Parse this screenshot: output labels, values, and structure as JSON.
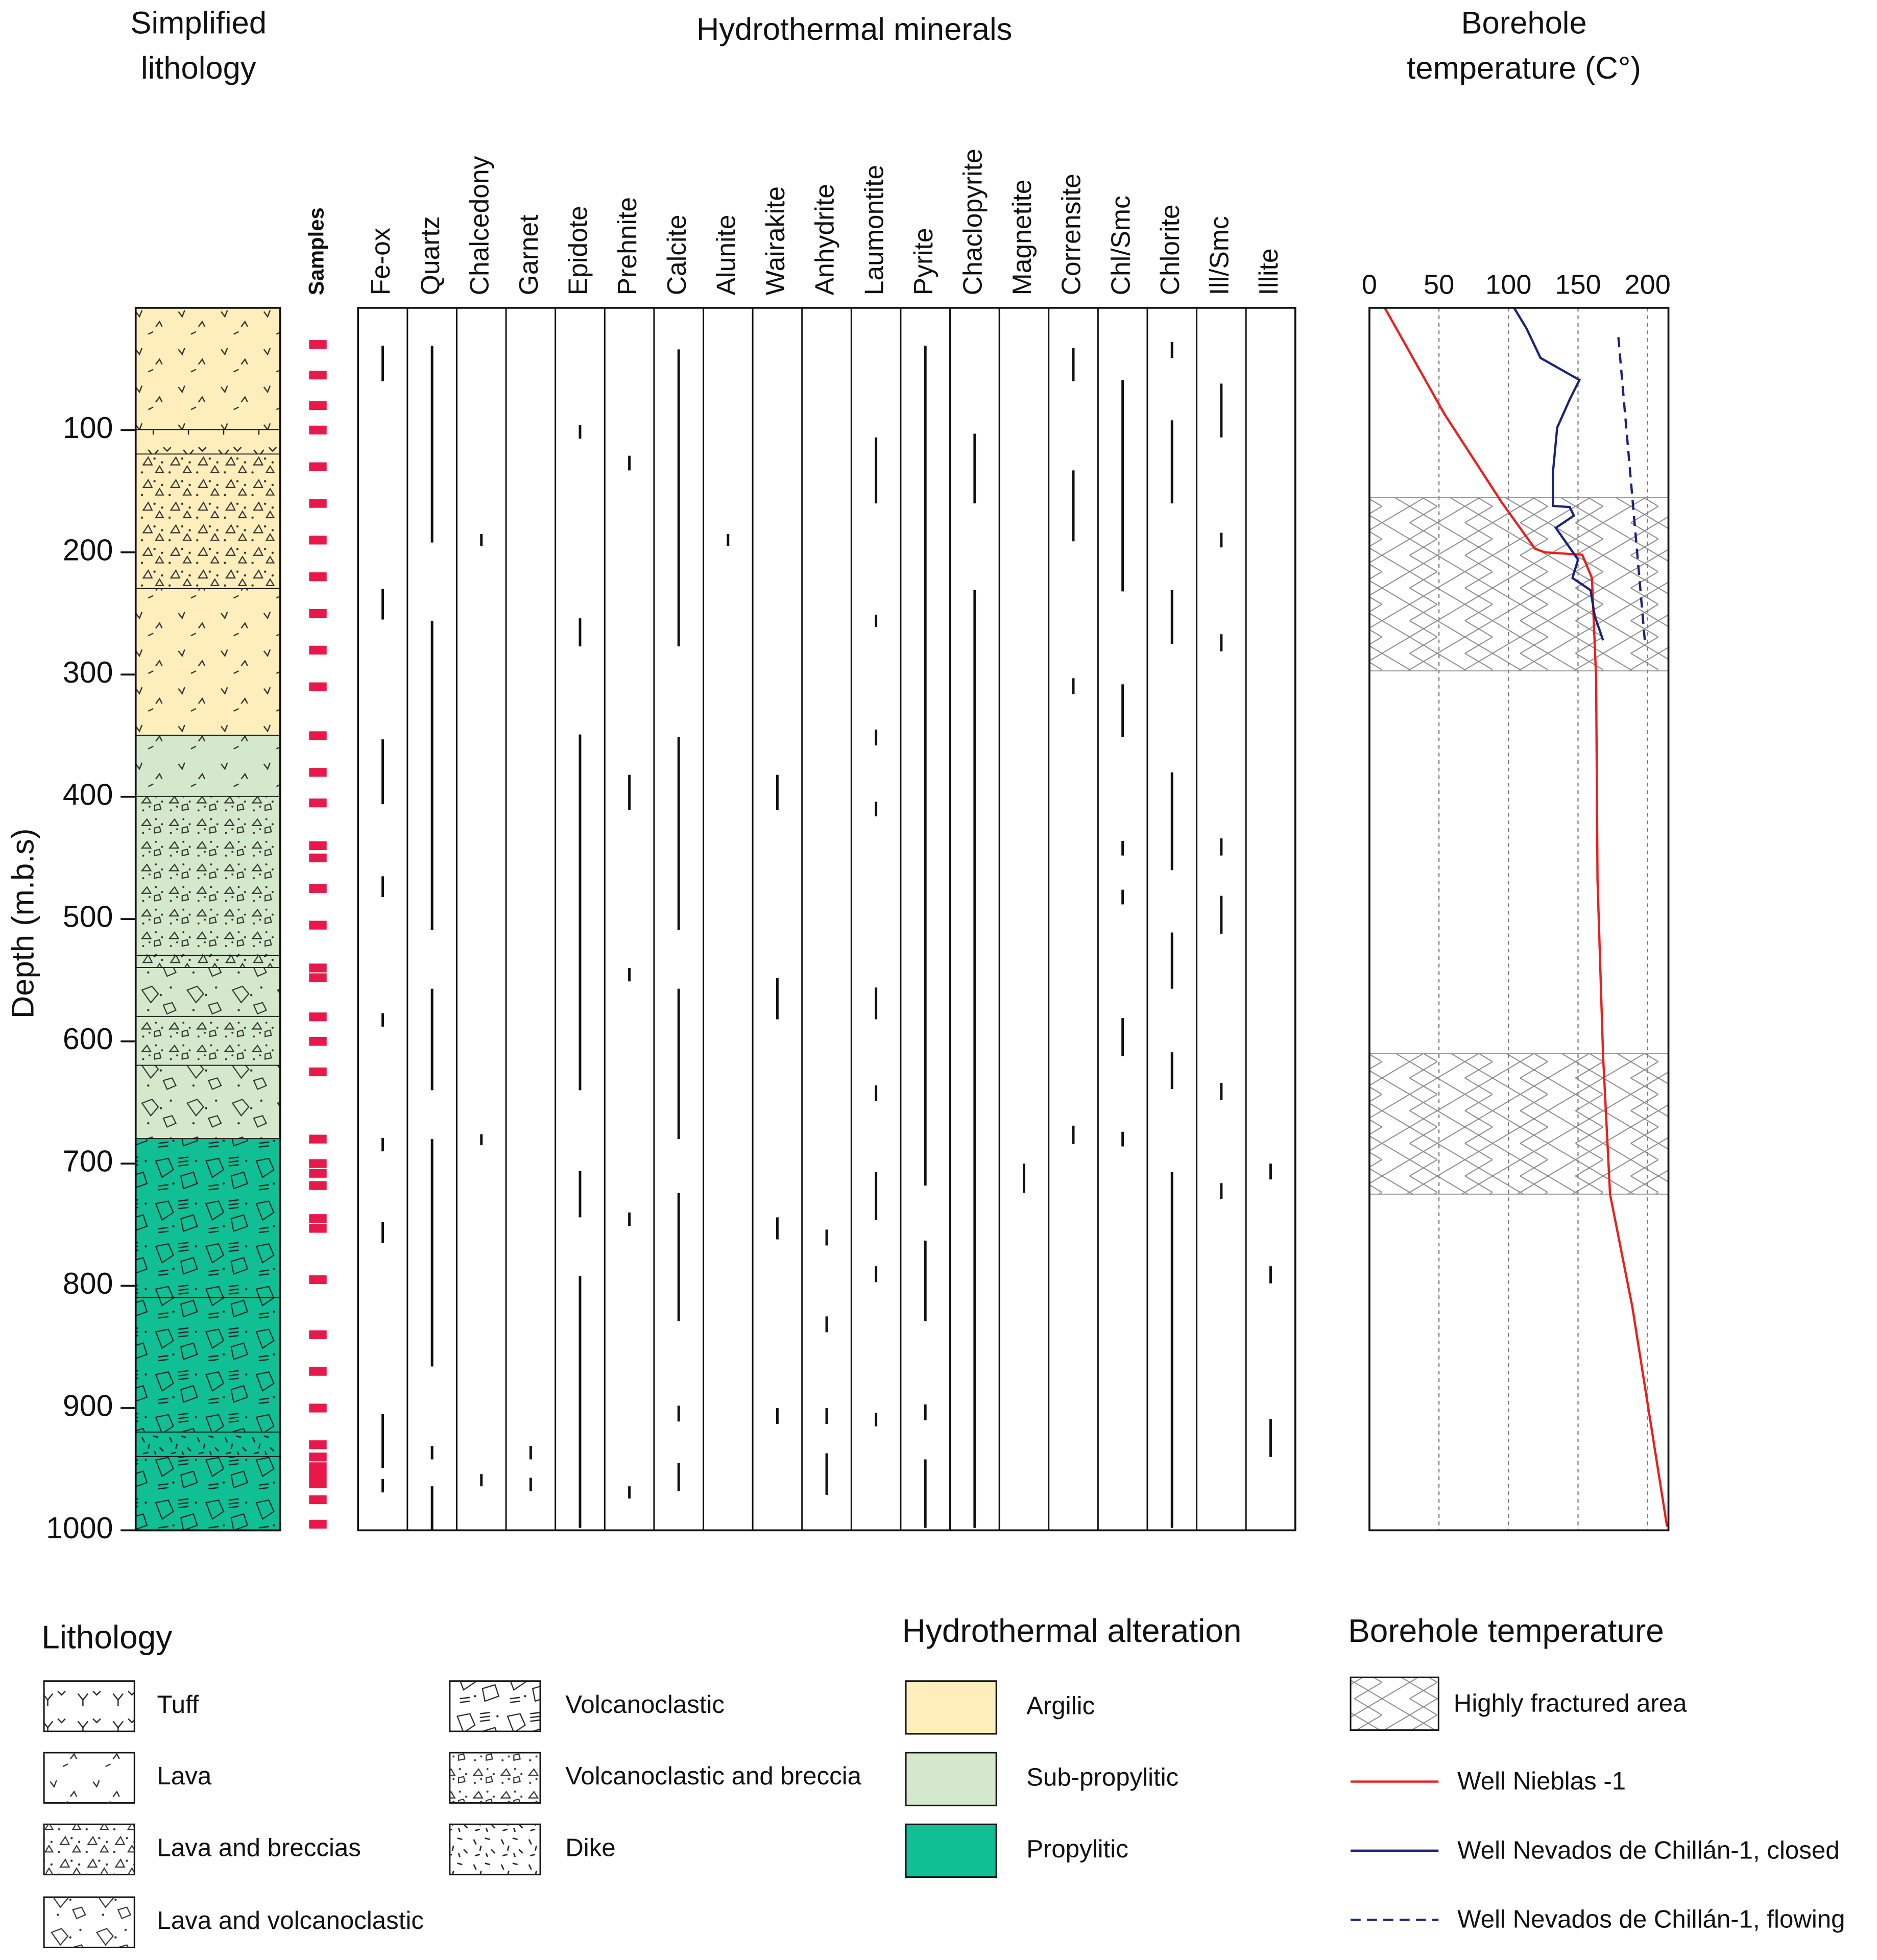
{
  "chart_data": [
    {
      "type": "strip",
      "title": [
        "Simplified",
        "lithology"
      ],
      "ylabel": "Depth (m.b.s)",
      "ylim": [
        0,
        1000
      ],
      "yticks": [
        100,
        200,
        300,
        400,
        500,
        600,
        700,
        800,
        900,
        1000
      ],
      "layers": [
        {
          "top": 0,
          "base": 100,
          "lithology": 1,
          "alteration": 0
        },
        {
          "top": 100,
          "base": 120,
          "lithology": 0,
          "alteration": 0
        },
        {
          "top": 120,
          "base": 230,
          "lithology": 2,
          "alteration": 0
        },
        {
          "top": 230,
          "base": 350,
          "lithology": 1,
          "alteration": 0
        },
        {
          "top": 350,
          "base": 400,
          "lithology": 1,
          "alteration": 1
        },
        {
          "top": 400,
          "base": 530,
          "lithology": 5,
          "alteration": 1
        },
        {
          "top": 530,
          "base": 540,
          "lithology": 2,
          "alteration": 1
        },
        {
          "top": 540,
          "base": 580,
          "lithology": 3,
          "alteration": 1
        },
        {
          "top": 580,
          "base": 620,
          "lithology": 5,
          "alteration": 1
        },
        {
          "top": 620,
          "base": 680,
          "lithology": 3,
          "alteration": 1
        },
        {
          "top": 680,
          "base": 810,
          "lithology": 4,
          "alteration": 2
        },
        {
          "top": 810,
          "base": 920,
          "lithology": 4,
          "alteration": 2
        },
        {
          "top": 920,
          "base": 940,
          "lithology": 6,
          "alteration": 2
        },
        {
          "top": 940,
          "base": 1000,
          "lithology": 4,
          "alteration": 2
        }
      ],
      "samples_label": "Samples",
      "samples_color": "#e8194a",
      "samples": [
        30,
        55,
        80,
        100,
        130,
        160,
        190,
        220,
        250,
        280,
        310,
        350,
        380,
        405,
        440,
        450,
        475,
        505,
        540,
        548,
        580,
        600,
        625,
        680,
        700,
        708,
        718,
        745,
        753,
        795,
        840,
        870,
        900,
        930,
        940,
        948,
        955,
        962,
        975,
        995
      ],
      "legend": {
        "title": "Lithology",
        "items": [
          "Tuff",
          "Lava",
          "Lava and breccias",
          "Lava and volcanoclastic",
          "Volcanoclastic",
          "Volcanoclastic and breccia",
          "Dike"
        ]
      },
      "alteration": {
        "title": "Hydrothermal alteration",
        "items": [
          {
            "name": "Argilic",
            "color": "#fdeebb"
          },
          {
            "name": "Sub-propylitic",
            "color": "#d4e9cb"
          },
          {
            "name": "Propylitic",
            "color": "#10bf94"
          }
        ]
      }
    },
    {
      "type": "range",
      "title": "Hydrothermal minerals",
      "ylim": [
        0,
        1000
      ],
      "categories": [
        "Fe-ox",
        "Quartz",
        "Chalcedony",
        "Garnet",
        "Epidote",
        "Prehnite",
        "Calcite",
        "Alunite",
        "Wairakite",
        "Anhydrite",
        "Laumontite",
        "Pyrite",
        "Chaclopyrite",
        "Magnetite",
        "Corrensite",
        "Chl/Smc",
        "Chlorite",
        "Ill/Smc",
        "Illite"
      ],
      "intervals": [
        [
          [
            31,
            60
          ],
          [
            230,
            255
          ],
          [
            353,
            406
          ],
          [
            465,
            482
          ],
          [
            577,
            588
          ],
          [
            679,
            690
          ],
          [
            748,
            765
          ],
          [
            905,
            949
          ],
          [
            958,
            969
          ]
        ],
        [
          [
            31,
            192
          ],
          [
            256,
            509
          ],
          [
            557,
            640
          ],
          [
            680,
            866
          ],
          [
            931,
            942
          ],
          [
            964,
            1000
          ]
        ],
        [
          [
            185,
            195
          ],
          [
            676,
            685
          ],
          [
            954,
            964
          ]
        ],
        [
          [
            931,
            942
          ],
          [
            957,
            968
          ]
        ],
        [
          [
            96,
            107
          ],
          [
            254,
            277
          ],
          [
            349,
            640
          ],
          [
            706,
            744
          ],
          [
            792,
            998
          ]
        ],
        [
          [
            121,
            133
          ],
          [
            382,
            411
          ],
          [
            540,
            551
          ],
          [
            740,
            751
          ],
          [
            964,
            974
          ]
        ],
        [
          [
            34,
            277
          ],
          [
            351,
            509
          ],
          [
            557,
            680
          ],
          [
            724,
            829
          ],
          [
            898,
            911
          ],
          [
            945,
            968
          ]
        ],
        [
          [
            185,
            195
          ]
        ],
        [
          [
            382,
            411
          ],
          [
            548,
            582
          ],
          [
            744,
            762
          ],
          [
            900,
            913
          ]
        ],
        [
          [
            754,
            767
          ],
          [
            825,
            838
          ],
          [
            900,
            913
          ],
          [
            937,
            971
          ]
        ],
        [
          [
            106,
            160
          ],
          [
            251,
            261
          ],
          [
            345,
            358
          ],
          [
            404,
            416
          ],
          [
            556,
            582
          ],
          [
            636,
            649
          ],
          [
            707,
            746
          ],
          [
            784,
            797
          ],
          [
            904,
            915
          ]
        ],
        [
          [
            31,
            718
          ],
          [
            763,
            829
          ],
          [
            897,
            910
          ],
          [
            942,
            998
          ]
        ],
        [
          [
            103,
            160
          ],
          [
            231,
            998
          ]
        ],
        [
          [
            700,
            724
          ]
        ],
        [
          [
            33,
            60
          ],
          [
            133,
            191
          ],
          [
            303,
            316
          ],
          [
            669,
            684
          ]
        ],
        [
          [
            59,
            232
          ],
          [
            308,
            351
          ],
          [
            436,
            448
          ],
          [
            476,
            488
          ],
          [
            581,
            612
          ],
          [
            674,
            686
          ]
        ],
        [
          [
            28,
            41
          ],
          [
            92,
            160
          ],
          [
            231,
            275
          ],
          [
            380,
            460
          ],
          [
            511,
            557
          ],
          [
            609,
            639
          ],
          [
            707,
            998
          ]
        ],
        [
          [
            62,
            106
          ],
          [
            184,
            196
          ],
          [
            267,
            281
          ],
          [
            434,
            448
          ],
          [
            481,
            512
          ],
          [
            634,
            648
          ],
          [
            716,
            729
          ]
        ],
        [
          [
            700,
            713
          ],
          [
            784,
            798
          ],
          [
            909,
            940
          ]
        ]
      ]
    },
    {
      "type": "line",
      "title": [
        "Borehole",
        "temperature (C°)"
      ],
      "legend_title": "Borehole temperature",
      "xlim": [
        0,
        215
      ],
      "xticks": [
        0,
        50,
        100,
        150,
        200
      ],
      "ylim": [
        0,
        1000
      ],
      "grid": true,
      "shaded": {
        "name": "Highly fractured area",
        "ranges": [
          [
            155,
            297
          ],
          [
            610,
            725
          ]
        ]
      },
      "series": [
        {
          "name": "Well Nieblas -1",
          "color": "#e8201c",
          "dash": false,
          "values": [
            11,
            54,
            95,
            119,
            126,
            153,
            160,
            163,
            164,
            168,
            173,
            189,
            214
          ],
          "y": [
            0,
            87,
            159,
            197,
            200,
            202,
            221,
            303,
            468,
            612,
            725,
            817,
            997
          ]
        },
        {
          "name": "Well Nevados de Chillán-1, closed",
          "color": "#1a237e",
          "dash": false,
          "values": [
            104,
            113,
            123,
            151,
            144,
            135,
            132,
            132,
            144,
            147,
            134,
            150,
            146,
            159,
            162,
            168
          ],
          "y": [
            0,
            17,
            41,
            59,
            75,
            98,
            134,
            162,
            163,
            170,
            180,
            206,
            221,
            231,
            252,
            272
          ]
        },
        {
          "name": "Well Nevados de Chillán-1, flowing",
          "color": "#1a237e",
          "dash": true,
          "values": [
            179,
            198
          ],
          "y": [
            24,
            272
          ]
        }
      ]
    }
  ]
}
